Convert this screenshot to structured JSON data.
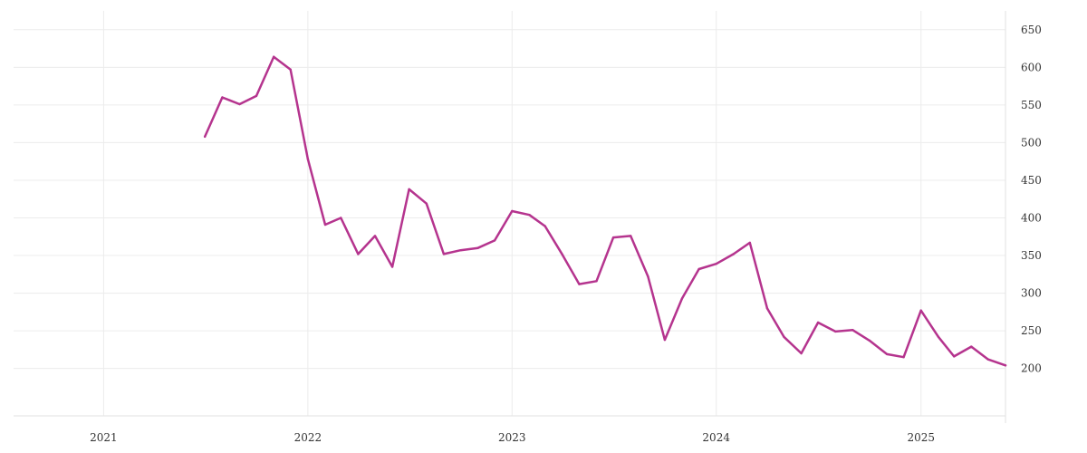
{
  "chart_data": {
    "type": "line",
    "title": "",
    "xlabel": "",
    "ylabel": "",
    "x_ticks": [
      "2021",
      "2022",
      "2023",
      "2024",
      "2025"
    ],
    "y_ticks": [
      200,
      250,
      300,
      350,
      400,
      450,
      500,
      550,
      600,
      650
    ],
    "xlim": [
      "2020-07-24",
      "2025-06-01"
    ],
    "ylim": [
      137,
      675
    ],
    "y_axis_position": "right",
    "grid": true,
    "legend": "none",
    "colors": {
      "series": "#b5348e",
      "grid": "#ececec",
      "axis": "#e2e2e2",
      "text": "#333333"
    },
    "series": [
      {
        "x": [
          "2021-07-01",
          "2021-08-01",
          "2021-09-01",
          "2021-10-01",
          "2021-11-01",
          "2021-12-01",
          "2022-01-01",
          "2022-02-01",
          "2022-03-01",
          "2022-04-01",
          "2022-05-01",
          "2022-06-01",
          "2022-07-01",
          "2022-08-01",
          "2022-09-01",
          "2022-10-01",
          "2022-11-01",
          "2022-12-01",
          "2023-01-01",
          "2023-02-01",
          "2023-03-01",
          "2023-04-01",
          "2023-05-01",
          "2023-06-01",
          "2023-07-01",
          "2023-08-01",
          "2023-09-01",
          "2023-10-01",
          "2023-11-01",
          "2023-12-01",
          "2024-01-01",
          "2024-02-01",
          "2024-03-01",
          "2024-04-01",
          "2024-05-01",
          "2024-06-01",
          "2024-07-01",
          "2024-08-01",
          "2024-09-01",
          "2024-10-01",
          "2024-11-01",
          "2024-12-01",
          "2025-01-01",
          "2025-02-01",
          "2025-03-01",
          "2025-04-01",
          "2025-05-01",
          "2025-06-01"
        ],
        "values": [
          508,
          560,
          551,
          562,
          614,
          597,
          478,
          391,
          400,
          352,
          376,
          335,
          438,
          419,
          352,
          357,
          360,
          370,
          409,
          404,
          389,
          351,
          312,
          316,
          374,
          376,
          322,
          238,
          293,
          332,
          339,
          352,
          367,
          280,
          242,
          220,
          261,
          249,
          251,
          237,
          219,
          215,
          277,
          242,
          216,
          229,
          212,
          204
        ]
      }
    ]
  }
}
